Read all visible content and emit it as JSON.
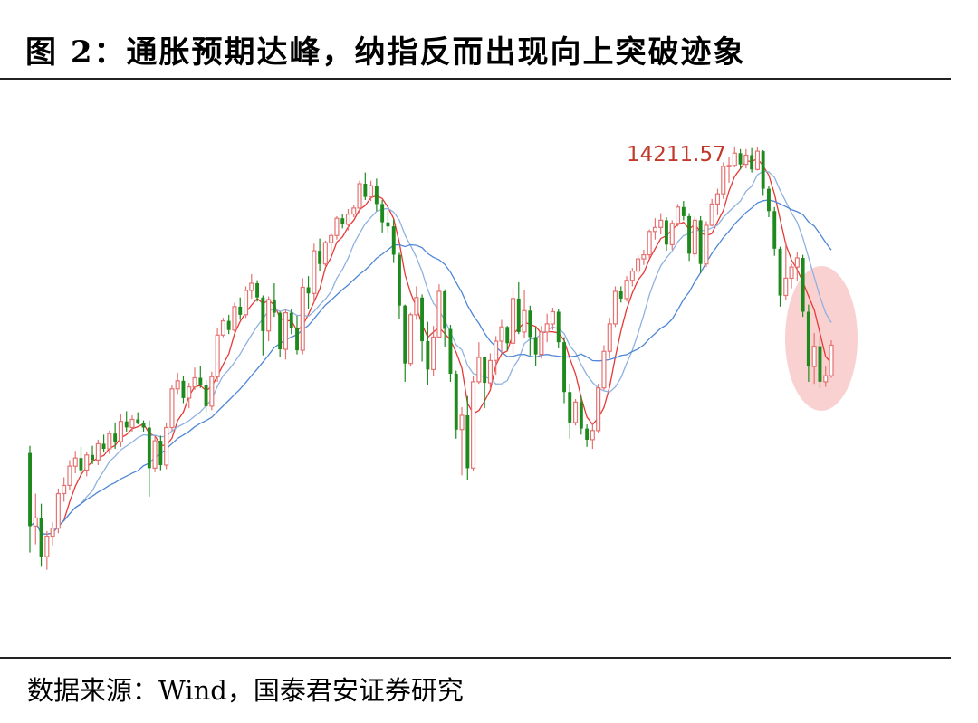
{
  "title": "图 2：通胀预期达峰，纳指反而出现向上突破迹象",
  "source": "数据来源：Wind，国泰君安证券研究",
  "chart_data": {
    "type": "candlestick",
    "title": "",
    "xlabel": "",
    "ylabel": "",
    "ylim": [
      9780,
      14500
    ],
    "annotation": "14211.57",
    "colors": {
      "up": "#e57373",
      "down": "#1e8a1e",
      "ma_short": "#e53935",
      "ma_mid": "#8fb1e0",
      "ma_long": "#4f87d6",
      "highlight": "#f4a3a3"
    },
    "candles": [
      [
        11200,
        11270,
        10220,
        10480
      ],
      [
        10480,
        10800,
        10300,
        10560
      ],
      [
        10560,
        10700,
        10080,
        10180
      ],
      [
        10180,
        10430,
        10050,
        10380
      ],
      [
        10380,
        10520,
        10290,
        10460
      ],
      [
        10460,
        10850,
        10410,
        10800
      ],
      [
        10800,
        10960,
        10720,
        10880
      ],
      [
        10880,
        11130,
        10830,
        11070
      ],
      [
        11070,
        11220,
        11000,
        11150
      ],
      [
        11150,
        11260,
        10990,
        11030
      ],
      [
        11030,
        11210,
        10970,
        11180
      ],
      [
        11180,
        11270,
        11090,
        11130
      ],
      [
        11130,
        11330,
        11080,
        11290
      ],
      [
        11290,
        11380,
        11210,
        11240
      ],
      [
        11240,
        11420,
        11190,
        11390
      ],
      [
        11390,
        11500,
        11240,
        11310
      ],
      [
        11310,
        11580,
        11260,
        11510
      ],
      [
        11510,
        11610,
        11410,
        11450
      ],
      [
        11450,
        11570,
        11410,
        11530
      ],
      [
        11530,
        11600,
        11480,
        11490
      ],
      [
        11490,
        11520,
        11410,
        11450
      ],
      [
        11450,
        11520,
        10770,
        11050
      ],
      [
        11050,
        11360,
        11010,
        11320
      ],
      [
        11320,
        11370,
        11030,
        11080
      ],
      [
        11080,
        11500,
        11040,
        11450
      ],
      [
        11450,
        11870,
        11420,
        11830
      ],
      [
        11830,
        11990,
        11780,
        11910
      ],
      [
        11910,
        11960,
        11690,
        11740
      ],
      [
        11740,
        11890,
        11640,
        11850
      ],
      [
        11850,
        12040,
        11820,
        11940
      ],
      [
        11940,
        12060,
        11840,
        11870
      ],
      [
        11870,
        11920,
        11600,
        11660
      ],
      [
        11660,
        12000,
        11620,
        11950
      ],
      [
        11950,
        12430,
        11900,
        12360
      ],
      [
        12360,
        12530,
        12340,
        12500
      ],
      [
        12500,
        12560,
        12370,
        12410
      ],
      [
        12410,
        12680,
        12390,
        12640
      ],
      [
        12640,
        12730,
        12510,
        12560
      ],
      [
        12560,
        12840,
        12530,
        12800
      ],
      [
        12800,
        12960,
        12720,
        12870
      ],
      [
        12870,
        12900,
        12690,
        12730
      ],
      [
        12730,
        12750,
        12160,
        12400
      ],
      [
        12400,
        12740,
        12300,
        12710
      ],
      [
        12710,
        12870,
        12540,
        12580
      ],
      [
        12580,
        12590,
        12140,
        12220
      ],
      [
        12220,
        12610,
        12120,
        12580
      ],
      [
        12580,
        12620,
        12370,
        12430
      ],
      [
        12430,
        12550,
        12170,
        12210
      ],
      [
        12210,
        12920,
        12170,
        12830
      ],
      [
        12830,
        12940,
        12620,
        12770
      ],
      [
        12770,
        13260,
        12680,
        13190
      ],
      [
        13190,
        13310,
        12990,
        13060
      ],
      [
        13060,
        13290,
        13040,
        13270
      ],
      [
        13270,
        13370,
        13180,
        13340
      ],
      [
        13340,
        13530,
        13300,
        13510
      ],
      [
        13510,
        13550,
        13410,
        13450
      ],
      [
        13450,
        13600,
        13390,
        13550
      ],
      [
        13550,
        13640,
        13520,
        13610
      ],
      [
        13610,
        13880,
        13560,
        13850
      ],
      [
        13850,
        13960,
        13690,
        13720
      ],
      [
        13720,
        13880,
        13680,
        13830
      ],
      [
        13830,
        13900,
        13580,
        13650
      ],
      [
        13650,
        13690,
        13370,
        13470
      ],
      [
        13470,
        13580,
        13360,
        13430
      ],
      [
        13430,
        13500,
        13070,
        13150
      ],
      [
        13150,
        13170,
        12520,
        12650
      ],
      [
        12650,
        12660,
        11900,
        12080
      ],
      [
        12080,
        12580,
        12050,
        12560
      ],
      [
        12560,
        12840,
        12510,
        12730
      ],
      [
        12730,
        12760,
        12100,
        12300
      ],
      [
        12300,
        12490,
        11870,
        12020
      ],
      [
        12020,
        12450,
        11960,
        12340
      ],
      [
        12340,
        12860,
        12330,
        12790
      ],
      [
        12790,
        12810,
        12240,
        12420
      ],
      [
        12420,
        12460,
        11900,
        11980
      ],
      [
        11980,
        12010,
        11340,
        11430
      ],
      [
        11430,
        11650,
        10980,
        11570
      ],
      [
        11570,
        11760,
        10930,
        11050
      ],
      [
        11050,
        11960,
        11020,
        11900
      ],
      [
        11900,
        12290,
        11880,
        12140
      ],
      [
        12140,
        12150,
        11640,
        11890
      ],
      [
        11890,
        12180,
        11830,
        12110
      ],
      [
        12110,
        12350,
        11970,
        12300
      ],
      [
        12300,
        12510,
        12180,
        12440
      ],
      [
        12440,
        12450,
        12210,
        12280
      ],
      [
        12280,
        12820,
        12180,
        12720
      ],
      [
        12720,
        12880,
        12370,
        12390
      ],
      [
        12390,
        12800,
        12330,
        12600
      ],
      [
        12600,
        12650,
        12160,
        12340
      ],
      [
        12340,
        12440,
        12060,
        12170
      ],
      [
        12170,
        12450,
        12130,
        12390
      ],
      [
        12390,
        12570,
        12290,
        12470
      ],
      [
        12470,
        12630,
        12410,
        12590
      ],
      [
        12590,
        12620,
        12230,
        12290
      ],
      [
        12290,
        12340,
        11690,
        11800
      ],
      [
        11800,
        11880,
        11340,
        11500
      ],
      [
        11500,
        11730,
        11470,
        11700
      ],
      [
        11700,
        11760,
        11380,
        11440
      ],
      [
        11440,
        11480,
        11260,
        11330
      ],
      [
        11330,
        11500,
        11240,
        11420
      ],
      [
        11420,
        11880,
        11400,
        11840
      ],
      [
        11840,
        12260,
        11820,
        12200
      ],
      [
        12200,
        12530,
        12130,
        12470
      ],
      [
        12470,
        12840,
        12440,
        12790
      ],
      [
        12790,
        12840,
        12680,
        12720
      ],
      [
        12720,
        12940,
        12690,
        12900
      ],
      [
        12900,
        13020,
        12840,
        12990
      ],
      [
        12990,
        13150,
        12960,
        13110
      ],
      [
        13110,
        13200,
        13050,
        13150
      ],
      [
        13150,
        13400,
        13120,
        13380
      ],
      [
        13380,
        13510,
        13300,
        13420
      ],
      [
        13420,
        13560,
        13350,
        13490
      ],
      [
        13490,
        13520,
        13190,
        13250
      ],
      [
        13250,
        13490,
        13200,
        13460
      ],
      [
        13460,
        13650,
        13430,
        13620
      ],
      [
        13620,
        13680,
        13490,
        13530
      ],
      [
        13530,
        13560,
        13090,
        13160
      ],
      [
        13160,
        13530,
        13130,
        13490
      ],
      [
        13490,
        13530,
        12970,
        13060
      ],
      [
        13060,
        13480,
        13030,
        13440
      ],
      [
        13440,
        13700,
        13430,
        13650
      ],
      [
        13650,
        13800,
        13540,
        13750
      ],
      [
        13750,
        14060,
        13700,
        14020
      ],
      [
        14020,
        14110,
        13860,
        14030
      ],
      [
        14030,
        14211,
        14010,
        14150
      ],
      [
        14150,
        14190,
        13990,
        14040
      ],
      [
        14040,
        14190,
        14000,
        14130
      ],
      [
        14130,
        14200,
        13960,
        13990
      ],
      [
        13990,
        14211,
        13980,
        14170
      ],
      [
        14170,
        14180,
        13730,
        13800
      ],
      [
        13800,
        13830,
        13520,
        13580
      ],
      [
        13580,
        13620,
        13140,
        13210
      ],
      [
        13210,
        13230,
        12640,
        12750
      ],
      [
        12750,
        13280,
        12710,
        12920
      ],
      [
        12920,
        13060,
        12820,
        13030
      ],
      [
        13030,
        13180,
        12890,
        13120
      ],
      [
        13120,
        13150,
        12540,
        12590
      ],
      [
        12590,
        12660,
        11900,
        12050
      ],
      [
        12050,
        12380,
        11880,
        12250
      ],
      [
        12250,
        12320,
        11840,
        11900
      ],
      [
        11900,
        12060,
        11850,
        11960
      ],
      [
        11960,
        12310,
        11940,
        12260
      ]
    ]
  }
}
